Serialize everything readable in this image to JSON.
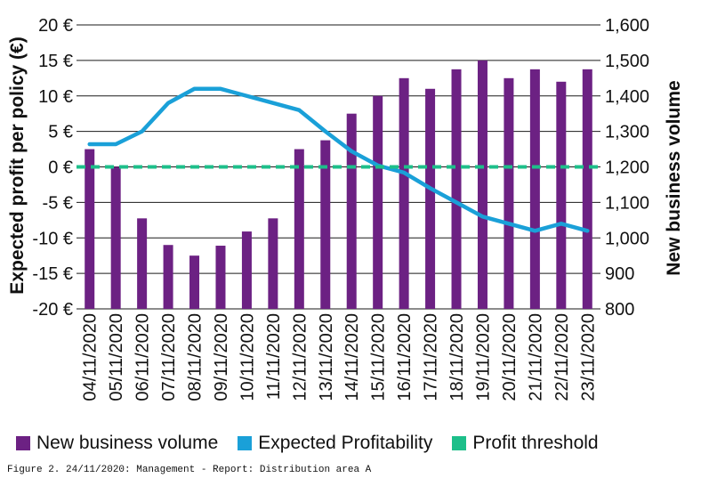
{
  "chart_data": {
    "type": "bar",
    "categories": [
      "04/11/2020",
      "05/11/2020",
      "06/11/2020",
      "07/11/2020",
      "08/11/2020",
      "09/11/2020",
      "10/11/2020",
      "11/11/2020",
      "12/11/2020",
      "13/11/2020",
      "14/11/2020",
      "15/11/2020",
      "16/11/2020",
      "17/11/2020",
      "18/11/2020",
      "19/11/2020",
      "20/11/2020",
      "21/11/2020",
      "22/11/2020",
      "23/11/2020"
    ],
    "series": [
      {
        "name": "New business volume",
        "axis": "right",
        "type": "bar",
        "color": "#6c2183",
        "values": [
          1250,
          1200,
          1055,
          980,
          950,
          978,
          1018,
          1055,
          1250,
          1275,
          1350,
          1400,
          1450,
          1420,
          1475,
          1500,
          1450,
          1475,
          1440,
          1475
        ]
      },
      {
        "name": "Expected Profitability",
        "axis": "left",
        "type": "line",
        "color": "#1aa0d8",
        "values": [
          3.2,
          3.2,
          5,
          9,
          11,
          11,
          10,
          9,
          8,
          5,
          2.2,
          0.2,
          -0.8,
          -3,
          -5,
          -7,
          -8,
          -9,
          -8,
          -9
        ]
      },
      {
        "name": "Profit threshold",
        "axis": "left",
        "type": "line",
        "dashed": true,
        "color": "#1dbf8a",
        "values": [
          0,
          0,
          0,
          0,
          0,
          0,
          0,
          0,
          0,
          0,
          0,
          0,
          0,
          0,
          0,
          0,
          0,
          0,
          0,
          0
        ]
      }
    ],
    "ylabel": "Expected profit per policy (€)",
    "y2label": "New business volume",
    "ylim": [
      -20,
      20
    ],
    "y2lim": [
      800,
      1600
    ],
    "yticks": [
      "-20 €",
      "-15 €",
      "-10 €",
      "-5 €",
      "0 €",
      "5 €",
      "10 €",
      "15 €",
      "20 €"
    ],
    "y2ticks": [
      "800",
      "900",
      "1,000",
      "1,100",
      "1,200",
      "1,300",
      "1,400",
      "1,500",
      "1,600"
    ],
    "grid": "horizontal",
    "legend_position": "bottom"
  },
  "legend": [
    {
      "label": "New business volume",
      "color": "#6c2183"
    },
    {
      "label": "Expected Profitability",
      "color": "#1aa0d8"
    },
    {
      "label": "Profit threshold",
      "color": "#1dbf8a"
    }
  ],
  "caption": "Figure 2. 24/11/2020: Management - Report: Distribution area A"
}
